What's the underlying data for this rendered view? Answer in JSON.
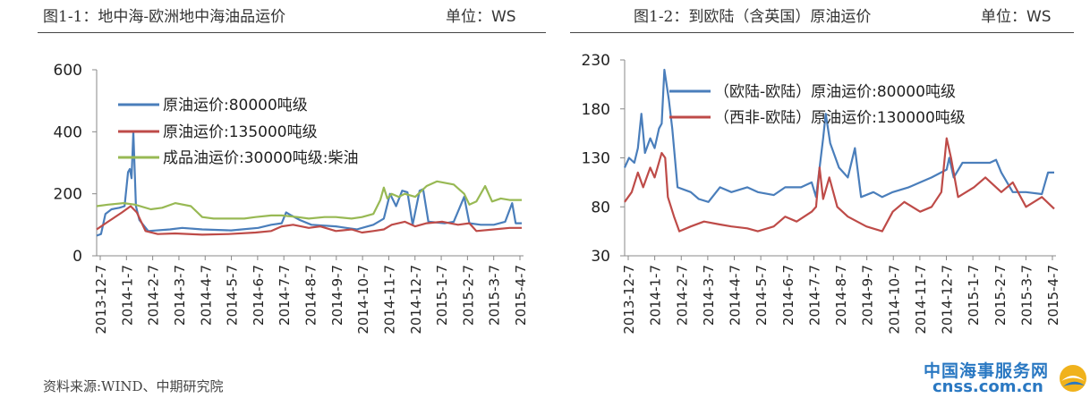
{
  "header": {
    "left_title": "图1-1：地中海-欧洲地中海油品运价",
    "left_unit": "单位：WS",
    "right_title": "图1-2：到欧陆（含英国）原油运价",
    "right_unit": "单位：WS"
  },
  "source": "资料来源:WIND、中期研究院",
  "watermark": {
    "cn": "中国海事服务网",
    "en": "cnss.com.cn"
  },
  "colors": {
    "blue": "#4a7ebb",
    "red": "#be4b48",
    "green": "#98b954"
  },
  "chart_data": [
    {
      "type": "line",
      "title": "图1-1：地中海-欧洲地中海油品运价",
      "ylabel": "单位：WS",
      "ylim": [
        0,
        600
      ],
      "yticks": [
        0,
        200,
        400,
        600
      ],
      "xlim": [
        "2013-12-07",
        "2015-04-10"
      ],
      "xticks": [
        "2013-12-7",
        "2014-1-7",
        "2014-2-7",
        "2014-3-7",
        "2014-4-7",
        "2014-5-7",
        "2014-6-7",
        "2014-7-7",
        "2014-8-7",
        "2014-9-7",
        "2014-10-7",
        "2014-11-7",
        "2014-12-7",
        "2015-1-7",
        "2015-2-7",
        "2015-3-7",
        "2015-4-7"
      ],
      "legend_position": "top-left",
      "series": [
        {
          "name": "原油运价:80000吨级",
          "color": "#4a7ebb",
          "points": [
            [
              "2013-12-07",
              65
            ],
            [
              "2013-12-12",
              70
            ],
            [
              "2013-12-17",
              135
            ],
            [
              "2013-12-24",
              150
            ],
            [
              "2014-01-02",
              155
            ],
            [
              "2014-01-08",
              160
            ],
            [
              "2014-01-12",
              270
            ],
            [
              "2014-01-14",
              280
            ],
            [
              "2014-01-16",
              250
            ],
            [
              "2014-01-18",
              400
            ],
            [
              "2014-01-21",
              160
            ],
            [
              "2014-01-25",
              115
            ],
            [
              "2014-02-04",
              80
            ],
            [
              "2014-03-01",
              85
            ],
            [
              "2014-03-15",
              90
            ],
            [
              "2014-04-07",
              85
            ],
            [
              "2014-05-10",
              82
            ],
            [
              "2014-06-10",
              90
            ],
            [
              "2014-06-25",
              100
            ],
            [
              "2014-07-07",
              105
            ],
            [
              "2014-07-12",
              140
            ],
            [
              "2014-07-18",
              130
            ],
            [
              "2014-07-28",
              115
            ],
            [
              "2014-08-10",
              100
            ],
            [
              "2014-09-07",
              95
            ],
            [
              "2014-10-01",
              85
            ],
            [
              "2014-10-20",
              100
            ],
            [
              "2014-11-01",
              120
            ],
            [
              "2014-11-08",
              200
            ],
            [
              "2014-11-15",
              160
            ],
            [
              "2014-11-22",
              210
            ],
            [
              "2014-11-28",
              205
            ],
            [
              "2014-12-04",
              100
            ],
            [
              "2014-12-12",
              210
            ],
            [
              "2014-12-16",
              215
            ],
            [
              "2014-12-22",
              110
            ],
            [
              "2015-01-10",
              105
            ],
            [
              "2015-01-20",
              110
            ],
            [
              "2015-02-01",
              190
            ],
            [
              "2015-02-07",
              105
            ],
            [
              "2015-02-20",
              100
            ],
            [
              "2015-03-07",
              100
            ],
            [
              "2015-03-20",
              110
            ],
            [
              "2015-03-28",
              170
            ],
            [
              "2015-04-01",
              105
            ],
            [
              "2015-04-08",
              105
            ]
          ]
        },
        {
          "name": "原油运价:135000吨级",
          "color": "#be4b48",
          "points": [
            [
              "2013-12-07",
              85
            ],
            [
              "2013-12-20",
              110
            ],
            [
              "2014-01-05",
              140
            ],
            [
              "2014-01-15",
              160
            ],
            [
              "2014-01-22",
              140
            ],
            [
              "2014-02-01",
              80
            ],
            [
              "2014-02-15",
              70
            ],
            [
              "2014-03-07",
              72
            ],
            [
              "2014-04-07",
              68
            ],
            [
              "2014-05-07",
              70
            ],
            [
              "2014-06-07",
              75
            ],
            [
              "2014-06-25",
              80
            ],
            [
              "2014-07-07",
              95
            ],
            [
              "2014-07-20",
              100
            ],
            [
              "2014-08-07",
              90
            ],
            [
              "2014-08-20",
              95
            ],
            [
              "2014-09-07",
              80
            ],
            [
              "2014-09-25",
              85
            ],
            [
              "2014-10-07",
              75
            ],
            [
              "2014-10-20",
              80
            ],
            [
              "2014-11-01",
              85
            ],
            [
              "2014-11-10",
              100
            ],
            [
              "2014-11-25",
              110
            ],
            [
              "2014-12-07",
              95
            ],
            [
              "2014-12-20",
              105
            ],
            [
              "2015-01-07",
              110
            ],
            [
              "2015-01-25",
              100
            ],
            [
              "2015-02-07",
              105
            ],
            [
              "2015-02-15",
              80
            ],
            [
              "2015-03-07",
              85
            ],
            [
              "2015-03-25",
              90
            ],
            [
              "2015-04-08",
              90
            ]
          ]
        },
        {
          "name": "成品油运价:30000吨级:柴油",
          "color": "#98b954",
          "points": [
            [
              "2013-12-07",
              160
            ],
            [
              "2013-12-20",
              165
            ],
            [
              "2014-01-07",
              170
            ],
            [
              "2014-01-20",
              165
            ],
            [
              "2014-02-07",
              150
            ],
            [
              "2014-02-20",
              155
            ],
            [
              "2014-03-07",
              170
            ],
            [
              "2014-03-25",
              160
            ],
            [
              "2014-04-07",
              125
            ],
            [
              "2014-04-20",
              120
            ],
            [
              "2014-05-07",
              120
            ],
            [
              "2014-05-25",
              120
            ],
            [
              "2014-06-07",
              125
            ],
            [
              "2014-06-25",
              130
            ],
            [
              "2014-07-07",
              130
            ],
            [
              "2014-07-25",
              125
            ],
            [
              "2014-08-07",
              120
            ],
            [
              "2014-08-25",
              125
            ],
            [
              "2014-09-07",
              125
            ],
            [
              "2014-09-25",
              120
            ],
            [
              "2014-10-07",
              125
            ],
            [
              "2014-10-20",
              135
            ],
            [
              "2014-10-28",
              180
            ],
            [
              "2014-11-01",
              220
            ],
            [
              "2014-11-05",
              185
            ],
            [
              "2014-11-10",
              200
            ],
            [
              "2014-11-18",
              190
            ],
            [
              "2014-11-25",
              200
            ],
            [
              "2014-12-07",
              190
            ],
            [
              "2014-12-20",
              225
            ],
            [
              "2015-01-01",
              240
            ],
            [
              "2015-01-20",
              230
            ],
            [
              "2015-02-01",
              200
            ],
            [
              "2015-02-07",
              165
            ],
            [
              "2015-02-15",
              175
            ],
            [
              "2015-02-25",
              225
            ],
            [
              "2015-03-05",
              175
            ],
            [
              "2015-03-15",
              185
            ],
            [
              "2015-03-25",
              180
            ],
            [
              "2015-04-08",
              180
            ]
          ]
        }
      ]
    },
    {
      "type": "line",
      "title": "图1-2：到欧陆（含英国）原油运价",
      "ylabel": "单位：WS",
      "ylim": [
        30,
        230
      ],
      "yticks": [
        30,
        80,
        130,
        180,
        230
      ],
      "xlim": [
        "2013-12-07",
        "2015-04-10"
      ],
      "xticks": [
        "2013-12-7",
        "2014-1-7",
        "2014-2-7",
        "2014-3-7",
        "2014-4-7",
        "2014-5-7",
        "2014-6-7",
        "2014-7-7",
        "2014-8-7",
        "2014-9-7",
        "2014-10-7",
        "2014-11-7",
        "2014-12-7",
        "2015-1-7",
        "2015-2-7",
        "2015-3-7",
        "2015-4-7"
      ],
      "legend_position": "top-right",
      "series": [
        {
          "name": "（欧陆-欧陆）原油运价:80000吨级",
          "color": "#4a7ebb",
          "points": [
            [
              "2013-12-07",
              120
            ],
            [
              "2013-12-12",
              130
            ],
            [
              "2013-12-18",
              125
            ],
            [
              "2013-12-22",
              140
            ],
            [
              "2013-12-26",
              175
            ],
            [
              "2013-12-30",
              135
            ],
            [
              "2014-01-05",
              150
            ],
            [
              "2014-01-10",
              140
            ],
            [
              "2014-01-15",
              160
            ],
            [
              "2014-01-18",
              165
            ],
            [
              "2014-01-21",
              220
            ],
            [
              "2014-01-26",
              190
            ],
            [
              "2014-01-30",
              160
            ],
            [
              "2014-02-05",
              100
            ],
            [
              "2014-02-20",
              95
            ],
            [
              "2014-03-01",
              88
            ],
            [
              "2014-03-12",
              85
            ],
            [
              "2014-03-25",
              100
            ],
            [
              "2014-04-07",
              95
            ],
            [
              "2014-04-25",
              100
            ],
            [
              "2014-05-07",
              95
            ],
            [
              "2014-05-25",
              92
            ],
            [
              "2014-06-07",
              100
            ],
            [
              "2014-06-25",
              100
            ],
            [
              "2014-07-07",
              105
            ],
            [
              "2014-07-12",
              90
            ],
            [
              "2014-07-20",
              150
            ],
            [
              "2014-07-23",
              175
            ],
            [
              "2014-07-28",
              145
            ],
            [
              "2014-08-07",
              120
            ],
            [
              "2014-08-17",
              110
            ],
            [
              "2014-08-25",
              140
            ],
            [
              "2014-09-01",
              90
            ],
            [
              "2014-09-15",
              95
            ],
            [
              "2014-09-25",
              90
            ],
            [
              "2014-10-07",
              95
            ],
            [
              "2014-10-25",
              100
            ],
            [
              "2014-11-07",
              105
            ],
            [
              "2014-11-20",
              110
            ],
            [
              "2014-12-07",
              118
            ],
            [
              "2014-12-10",
              130
            ],
            [
              "2014-12-15",
              110
            ],
            [
              "2014-12-25",
              125
            ],
            [
              "2015-01-07",
              125
            ],
            [
              "2015-01-25",
              125
            ],
            [
              "2015-02-01",
              128
            ],
            [
              "2015-02-07",
              115
            ],
            [
              "2015-02-20",
              95
            ],
            [
              "2015-03-07",
              95
            ],
            [
              "2015-03-25",
              93
            ],
            [
              "2015-04-01",
              115
            ],
            [
              "2015-04-08",
              115
            ]
          ]
        },
        {
          "name": "（西非-欧陆）原油运价:130000吨级",
          "color": "#be4b48",
          "points": [
            [
              "2013-12-07",
              85
            ],
            [
              "2013-12-15",
              95
            ],
            [
              "2013-12-22",
              115
            ],
            [
              "2013-12-28",
              100
            ],
            [
              "2014-01-05",
              120
            ],
            [
              "2014-01-10",
              110
            ],
            [
              "2014-01-18",
              135
            ],
            [
              "2014-01-22",
              130
            ],
            [
              "2014-01-25",
              90
            ],
            [
              "2014-02-01",
              70
            ],
            [
              "2014-02-07",
              55
            ],
            [
              "2014-02-20",
              60
            ],
            [
              "2014-03-07",
              65
            ],
            [
              "2014-03-25",
              62
            ],
            [
              "2014-04-07",
              60
            ],
            [
              "2014-04-25",
              58
            ],
            [
              "2014-05-07",
              55
            ],
            [
              "2014-05-25",
              60
            ],
            [
              "2014-06-07",
              70
            ],
            [
              "2014-06-20",
              65
            ],
            [
              "2014-07-07",
              75
            ],
            [
              "2014-07-12",
              80
            ],
            [
              "2014-07-16",
              120
            ],
            [
              "2014-07-20",
              88
            ],
            [
              "2014-07-27",
              110
            ],
            [
              "2014-08-05",
              80
            ],
            [
              "2014-08-17",
              70
            ],
            [
              "2014-09-07",
              60
            ],
            [
              "2014-09-25",
              55
            ],
            [
              "2014-10-07",
              75
            ],
            [
              "2014-10-20",
              85
            ],
            [
              "2014-11-07",
              75
            ],
            [
              "2014-11-20",
              80
            ],
            [
              "2014-12-01",
              95
            ],
            [
              "2014-12-07",
              150
            ],
            [
              "2014-12-12",
              130
            ],
            [
              "2014-12-20",
              90
            ],
            [
              "2015-01-07",
              100
            ],
            [
              "2015-01-20",
              110
            ],
            [
              "2015-02-07",
              95
            ],
            [
              "2015-02-20",
              105
            ],
            [
              "2015-03-07",
              80
            ],
            [
              "2015-03-25",
              90
            ],
            [
              "2015-04-08",
              78
            ]
          ]
        }
      ]
    }
  ]
}
